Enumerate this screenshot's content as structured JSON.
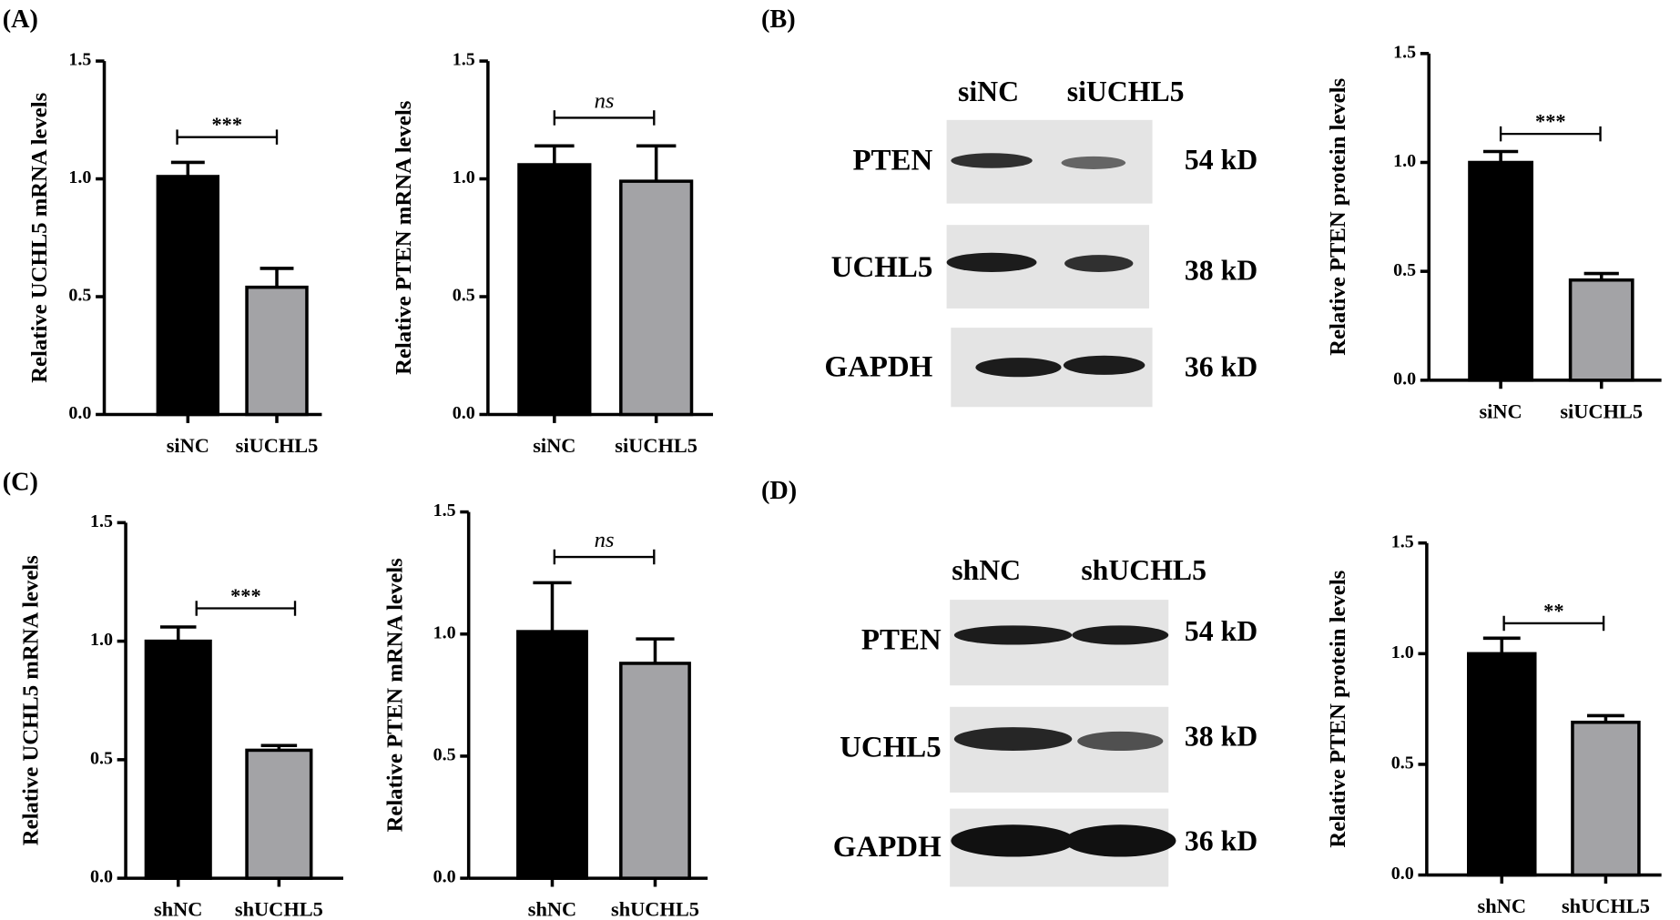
{
  "panels": [
    "(A)",
    "(B)",
    "(C)",
    "(D)"
  ],
  "blots": [
    {
      "lanes": [
        "siNC",
        "siUCHL5"
      ],
      "proteins": [
        {
          "name": "PTEN",
          "size": "54 kD"
        },
        {
          "name": "UCHL5",
          "size": "38 kD"
        },
        {
          "name": "GAPDH",
          "size": "36 kD"
        }
      ]
    },
    {
      "lanes": [
        "shNC",
        "shUCHL5"
      ],
      "proteins": [
        {
          "name": "PTEN",
          "size": "54 kD"
        },
        {
          "name": "UCHL5",
          "size": "38 kD"
        },
        {
          "name": "GAPDH",
          "size": "36 kD"
        }
      ]
    }
  ],
  "chart_data": [
    {
      "type": "bar",
      "ylabel": "Relative UCHL5 mRNA levels",
      "categories": [
        "siNC",
        "siUCHL5"
      ],
      "values": [
        1.01,
        0.54
      ],
      "errors": [
        0.06,
        0.08
      ],
      "colors": [
        "#000000",
        "#a3a3a6"
      ],
      "annotation": "***",
      "ylim": [
        0,
        1.5
      ],
      "yticks": [
        {
          "value": 0,
          "label": "0.0"
        },
        0.5,
        {
          "value": 1,
          "label": "1.0"
        },
        1.5
      ]
    },
    {
      "type": "bar",
      "ylabel": "Relative PTEN mRNA levels",
      "categories": [
        "siNC",
        "siUCHL5"
      ],
      "values": [
        1.06,
        0.99
      ],
      "errors": [
        0.08,
        0.15
      ],
      "colors": [
        "#000000",
        "#a3a3a6"
      ],
      "annotation": "ns",
      "ylim": [
        0,
        1.5
      ],
      "yticks": [
        {
          "value": 0,
          "label": "0.0"
        },
        0.5,
        {
          "value": 1,
          "label": "1.0"
        },
        1.5
      ]
    },
    {
      "type": "bar",
      "ylabel": "Relative PTEN protein levels",
      "categories": [
        "siNC",
        "siUCHL5"
      ],
      "values": [
        1.0,
        0.46
      ],
      "errors": [
        0.05,
        0.03
      ],
      "colors": [
        "#000000",
        "#a3a3a6"
      ],
      "annotation": "***",
      "ylim": [
        0,
        1.5
      ],
      "yticks": [
        {
          "value": 0,
          "label": "0.0"
        },
        0.5,
        {
          "value": 1,
          "label": "1.0"
        },
        1.5
      ]
    },
    {
      "type": "bar",
      "ylabel": "Relative UCHL5 mRNA levels",
      "categories": [
        "shNC",
        "shUCHL5"
      ],
      "values": [
        1.0,
        0.54
      ],
      "errors": [
        0.06,
        0.02
      ],
      "colors": [
        "#000000",
        "#a3a3a6"
      ],
      "annotation": "***",
      "ylim": [
        0,
        1.5
      ],
      "yticks": [
        {
          "value": 0,
          "label": "0.0"
        },
        0.5,
        {
          "value": 1,
          "label": "1.0"
        },
        1.5
      ]
    },
    {
      "type": "bar",
      "ylabel": "Relative PTEN mRNA levels",
      "categories": [
        "shNC",
        "shUCHL5"
      ],
      "values": [
        1.01,
        0.88
      ],
      "errors": [
        0.2,
        0.1
      ],
      "colors": [
        "#000000",
        "#a3a3a6"
      ],
      "annotation": "ns",
      "ylim": [
        0,
        1.5
      ],
      "yticks": [
        {
          "value": 0,
          "label": "0.0"
        },
        0.5,
        {
          "value": 1,
          "label": "1.0"
        },
        1.5
      ]
    },
    {
      "type": "bar",
      "ylabel": "Relative PTEN protein levels",
      "categories": [
        "shNC",
        "shUCHL5"
      ],
      "values": [
        1.0,
        0.69
      ],
      "errors": [
        0.07,
        0.03
      ],
      "colors": [
        "#000000",
        "#a3a3a6"
      ],
      "annotation": "**",
      "ylim": [
        0,
        1.5
      ],
      "yticks": [
        {
          "value": 0,
          "label": "0.0"
        },
        0.5,
        {
          "value": 1,
          "label": "1.0"
        },
        1.5
      ]
    }
  ]
}
